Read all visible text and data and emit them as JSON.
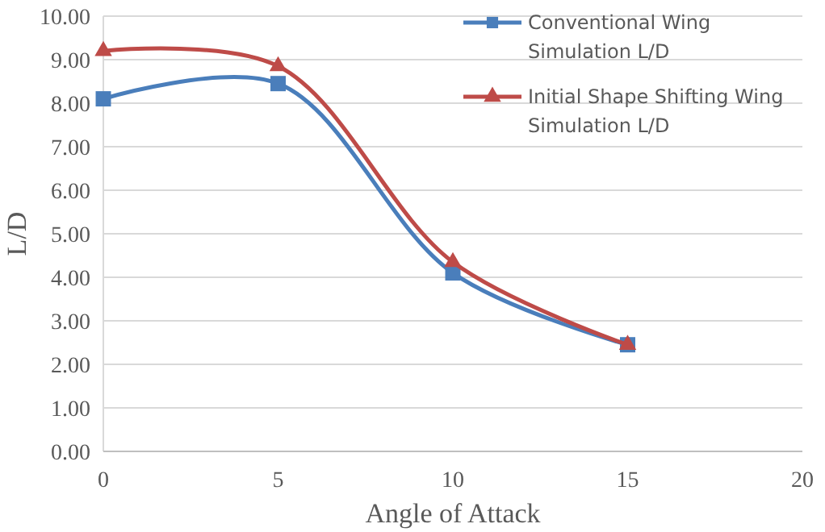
{
  "chart_data": {
    "type": "line",
    "xlabel": "Angle of Attack",
    "ylabel": "L/D",
    "x": [
      0,
      5,
      10,
      15
    ],
    "series": [
      {
        "name": "Conventional Wing Simulation L/D",
        "color": "#4a7ebb",
        "marker": "square",
        "values": [
          8.1,
          8.45,
          4.1,
          2.45
        ]
      },
      {
        "name": "Initial Shape Shifting Wing Simulation L/D",
        "color": "#be4b48",
        "marker": "triangle",
        "values": [
          9.2,
          8.85,
          4.35,
          2.45
        ]
      }
    ],
    "xlim": [
      0,
      20
    ],
    "xticks": [
      0,
      5,
      10,
      15,
      20
    ],
    "ylim": [
      0,
      10
    ],
    "yticks": [
      {
        "value": 0,
        "label": "0.00"
      },
      {
        "value": 1,
        "label": "1.00"
      },
      {
        "value": 2,
        "label": "2.00"
      },
      {
        "value": 3,
        "label": "3.00"
      },
      {
        "value": 4,
        "label": "4.00"
      },
      {
        "value": 5,
        "label": "5.00"
      },
      {
        "value": 6,
        "label": "6.00"
      },
      {
        "value": 7,
        "label": "7.00"
      },
      {
        "value": 8,
        "label": "8.00"
      },
      {
        "value": 9,
        "label": "9.00"
      },
      {
        "value": 10,
        "label": "10.00"
      }
    ],
    "grid": "y",
    "legend": "top right",
    "line_style": "solid"
  }
}
